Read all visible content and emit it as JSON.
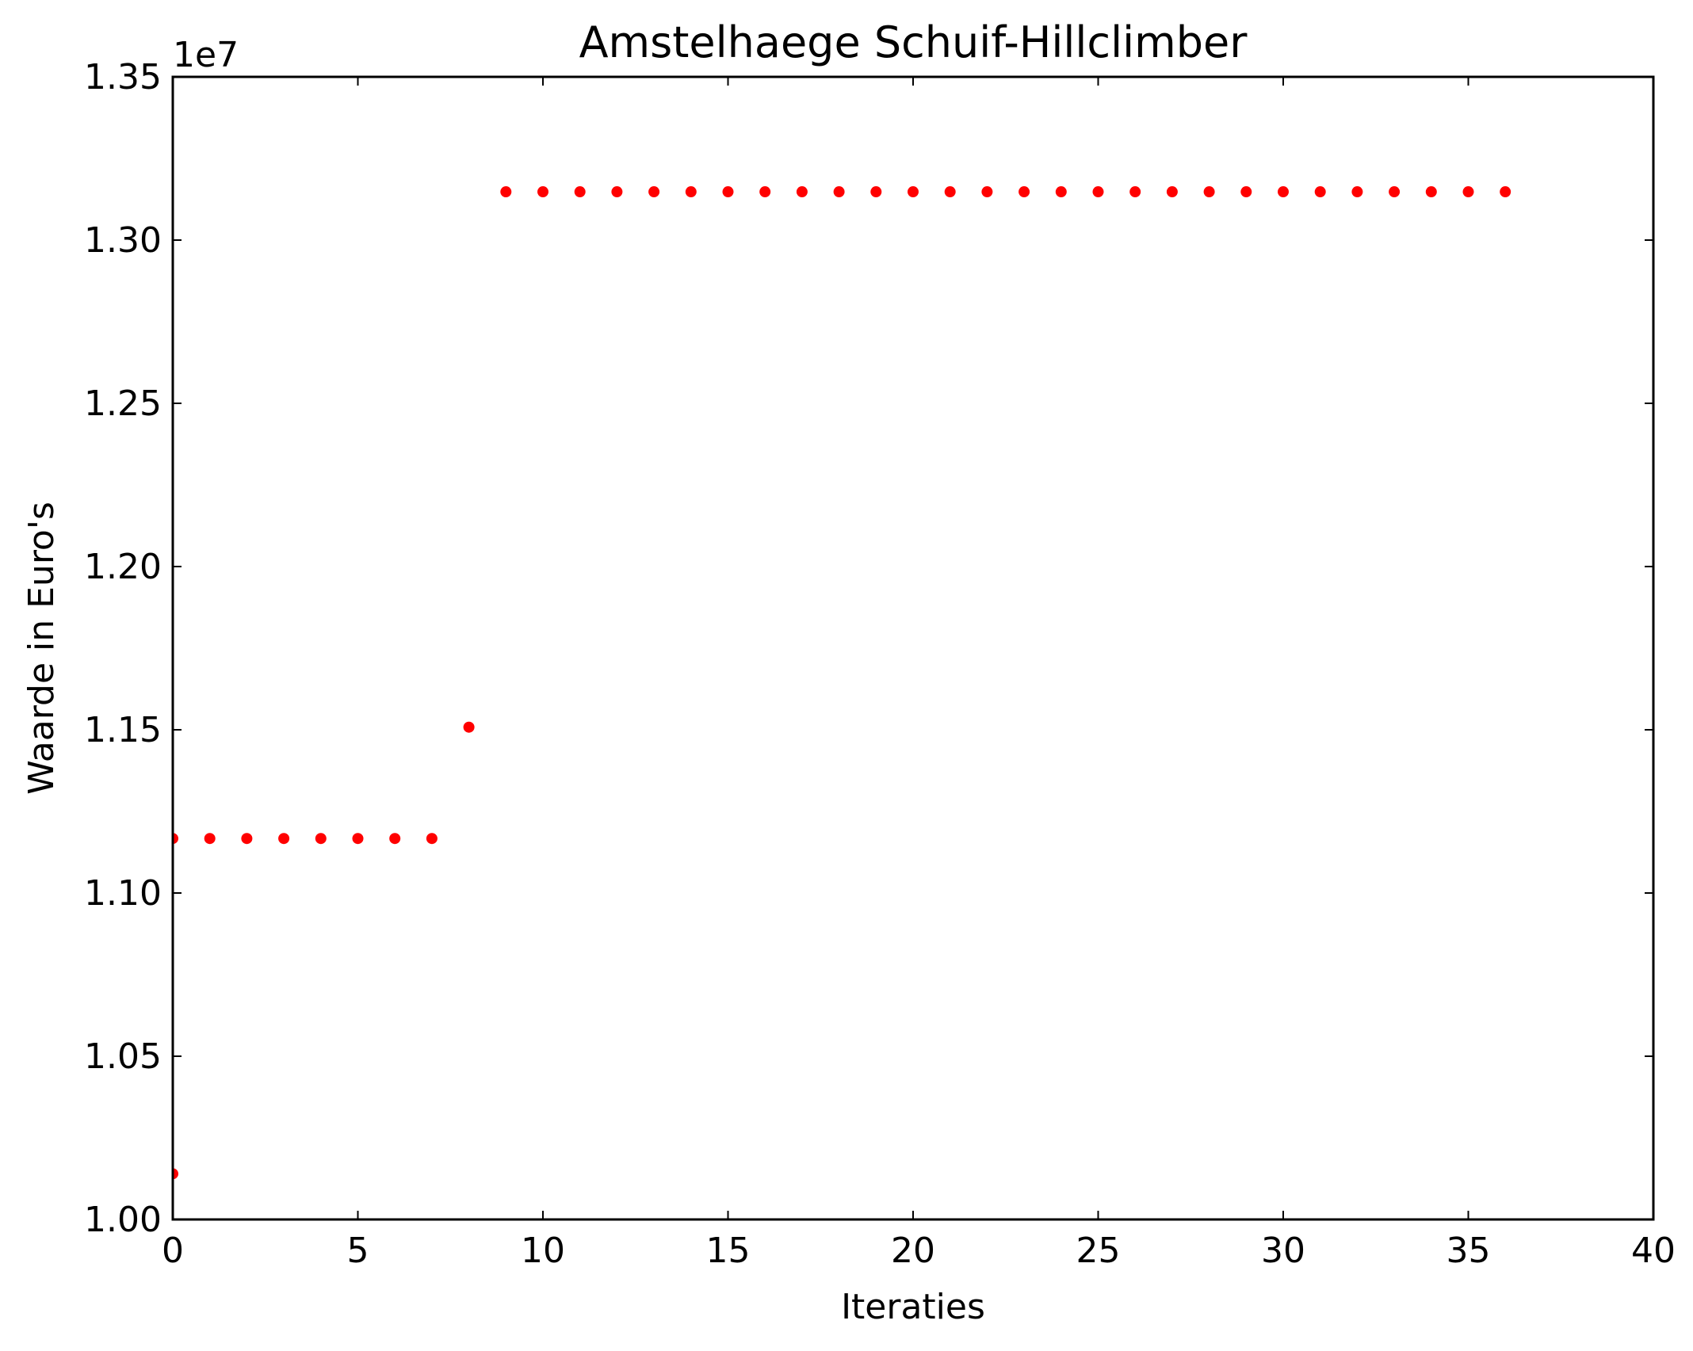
{
  "chart_data": {
    "type": "scatter",
    "title": "Amstelhaege Schuif-Hillclimber",
    "xlabel": "Iteraties",
    "ylabel": "Waarde in Euro's",
    "y_offset_label": "1e7",
    "xlim": [
      0,
      40
    ],
    "ylim": [
      1.0,
      1.35
    ],
    "xticks": [
      0,
      5,
      10,
      15,
      20,
      25,
      30,
      35,
      40
    ],
    "xtick_labels": [
      "0",
      "5",
      "10",
      "15",
      "20",
      "25",
      "30",
      "35",
      "40"
    ],
    "yticks": [
      1.0,
      1.05,
      1.1,
      1.15,
      1.2,
      1.25,
      1.3,
      1.35
    ],
    "ytick_labels": [
      "1.00",
      "1.05",
      "1.10",
      "1.15",
      "1.20",
      "1.25",
      "1.30",
      "1.35"
    ],
    "grid": false,
    "legend": "none",
    "marker_color": "#ff0000",
    "series": [
      {
        "x": [
          0,
          0,
          1,
          2,
          3,
          4,
          5,
          6,
          7,
          8,
          9,
          10,
          11,
          12,
          13,
          14,
          15,
          16,
          17,
          18,
          19,
          20,
          21,
          22,
          23,
          24,
          25,
          26,
          27,
          28,
          29,
          30,
          31,
          32,
          33,
          34,
          35,
          36
        ],
        "y": [
          1.014,
          1.1167,
          1.1167,
          1.1167,
          1.1167,
          1.1167,
          1.1167,
          1.1167,
          1.1167,
          1.1508,
          1.3148,
          1.3148,
          1.3148,
          1.3148,
          1.3148,
          1.3148,
          1.3148,
          1.3148,
          1.3148,
          1.3148,
          1.3148,
          1.3148,
          1.3148,
          1.3148,
          1.3148,
          1.3148,
          1.3148,
          1.3148,
          1.3148,
          1.3148,
          1.3148,
          1.3148,
          1.3148,
          1.3148,
          1.3148,
          1.3148,
          1.3148,
          1.3148
        ]
      }
    ]
  }
}
